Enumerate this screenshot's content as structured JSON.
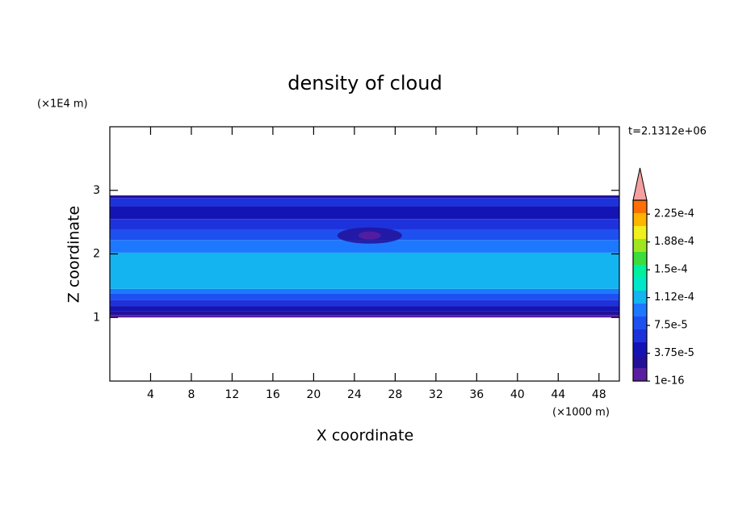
{
  "chart_data": {
    "type": "contour",
    "title": "density of cloud",
    "xlabel": "X coordinate",
    "ylabel": "Z coordinate",
    "xunit": "(×1000 m)",
    "yunit": "(×1E4 m)",
    "time_label": "t=2.1312e+06",
    "xlim": [
      0,
      50
    ],
    "ylim": [
      0,
      4
    ],
    "xticks": [
      4,
      8,
      12,
      16,
      20,
      24,
      28,
      32,
      36,
      40,
      44,
      48
    ],
    "yticks": [
      1,
      2,
      3
    ],
    "clim": [
      0,
      0.00024375
    ],
    "colorbar_colors": [
      "#5a1ea0",
      "#23109a",
      "#1414b4",
      "#1e32dc",
      "#1e50f0",
      "#1e78ff",
      "#14b4f0",
      "#00e6c8",
      "#00f0a0",
      "#3cdc3c",
      "#a0e61e",
      "#f0f01e",
      "#ffb400",
      "#ff6e00"
    ],
    "extend_color": "#f4a0a0",
    "colorbar_ticks": [
      {
        "value": 1e-16,
        "label": "1e-16"
      },
      {
        "value": 3.75e-05,
        "label": "3.75e-5"
      },
      {
        "value": 7.5e-05,
        "label": "7.5e-5"
      },
      {
        "value": 0.0001125,
        "label": "1.12e-4"
      },
      {
        "value": 0.00015,
        "label": "1.5e-4"
      },
      {
        "value": 0.0001875,
        "label": "1.88e-4"
      },
      {
        "value": 0.000225,
        "label": "2.25e-4"
      }
    ],
    "layers": [
      {
        "z": [
          1.0,
          1.04
        ],
        "value": 5e-06
      },
      {
        "z": [
          1.04,
          1.1
        ],
        "value": 2.8e-05
      },
      {
        "z": [
          1.1,
          1.18
        ],
        "value": 4.7e-05
      },
      {
        "z": [
          1.18,
          1.28
        ],
        "value": 6.5e-05
      },
      {
        "z": [
          1.28,
          1.38
        ],
        "value": 8.4e-05
      },
      {
        "z": [
          1.38,
          1.45
        ],
        "value": 0.000103
      },
      {
        "z": [
          1.45,
          2.02
        ],
        "value": 0.00012
      },
      {
        "z": [
          2.02,
          2.22
        ],
        "value": 0.000103
      },
      {
        "z": [
          2.22,
          2.38
        ],
        "value": 8.4e-05
      },
      {
        "z": [
          2.38,
          2.55
        ],
        "value": 6.5e-05
      },
      {
        "z": [
          2.55,
          2.75
        ],
        "value": 4.7e-05
      },
      {
        "z": [
          2.75,
          2.88
        ],
        "value": 6.5e-05
      },
      {
        "z": [
          2.88,
          2.92
        ],
        "value": 2.8e-05
      }
    ],
    "eddies": [
      {
        "x": 25.5,
        "z": 2.2,
        "value": 2.8e-05
      },
      {
        "x": 25.5,
        "z": 2.2,
        "value": 5e-06
      }
    ]
  }
}
